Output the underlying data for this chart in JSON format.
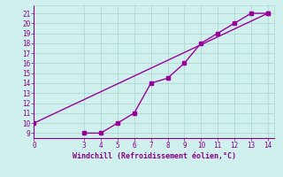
{
  "line1_x": [
    0,
    14
  ],
  "line1_y": [
    10,
    21
  ],
  "line2_x": [
    3,
    4,
    5,
    6,
    7,
    8,
    9,
    10,
    11,
    12,
    13,
    14
  ],
  "line2_y": [
    9,
    9,
    10,
    11,
    14,
    14.5,
    16,
    18,
    19,
    20,
    21,
    21
  ],
  "color": "#990099",
  "bg_color": "#cff0ec",
  "grid_color": "#b0d8d4",
  "xlabel": "Windchill (Refroidissement éolien,°C)",
  "xlim": [
    0,
    14.4
  ],
  "ylim": [
    8.5,
    21.8
  ],
  "xticks": [
    0,
    3,
    4,
    5,
    6,
    7,
    8,
    9,
    10,
    11,
    12,
    13,
    14
  ],
  "yticks": [
    9,
    10,
    11,
    12,
    13,
    14,
    15,
    16,
    17,
    18,
    19,
    20,
    21
  ],
  "marker": "s",
  "markersize": 2.5,
  "linewidth": 1.0,
  "font_color": "#880088",
  "tick_fontsize": 5.5,
  "xlabel_fontsize": 6.0
}
